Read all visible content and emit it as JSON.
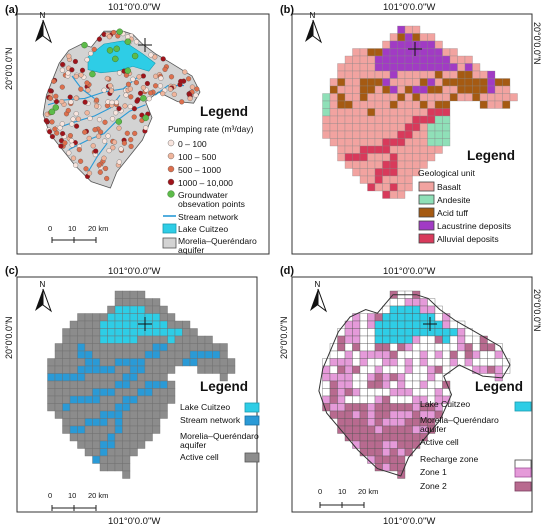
{
  "coordinates": {
    "lon_top": "101°0'0.0\"W",
    "lon_bottom": "101°0'0.0\"W",
    "lat_left": "20°0'0.0\"N",
    "lat_right": "20°0'0.0\"N"
  },
  "north_arrow_label": "N",
  "panels": {
    "a": {
      "label": "(a)",
      "legend_title": "Legend",
      "pumping_heading": "Pumping rate (m³/day)",
      "pumping_classes": [
        "0 – 100",
        "100 – 500",
        "500 – 1000",
        "1000 – 10,000"
      ],
      "gw_points": "Groundwater",
      "gw_points_2": "obsevation points",
      "stream": "Stream network",
      "lake": "Lake Cuitzeo",
      "aquifer": "Morelia–Queréndaro",
      "aquifer_2": "aquifer",
      "scale": [
        "0",
        "10",
        "20 km"
      ]
    },
    "b": {
      "label": "(b)",
      "legend_title": "Legend",
      "geo_heading": "Geological unit",
      "units": [
        "Basalt",
        "Andesite",
        "Acid tuff",
        "Lacustrine deposits",
        "Alluvial deposits"
      ]
    },
    "c": {
      "label": "(c)",
      "legend_title": "Legend",
      "lake": "Lake Cuitzeo",
      "stream": "Stream network",
      "aquifer": "Morelia–Queréndaro",
      "aquifer_2": "aquifer",
      "active": "Active cell",
      "scale": [
        "0",
        "10",
        "20 km"
      ]
    },
    "d": {
      "label": "(d)",
      "legend_title": "Legend",
      "lake": "Lake Cuitzeo",
      "aquifer": "Morelia–Queréndaro",
      "aquifer_2": "aquifer",
      "active": "Active cell",
      "recharge_heading": "Recharge zone",
      "zones": [
        "Zone 1",
        "Zone 2"
      ],
      "scale": [
        "0",
        "10",
        "20 km"
      ]
    }
  },
  "colors": {
    "aquifer": "#d3d3d3",
    "lake": "#2ecde6",
    "stream": "#2a9ad6",
    "basalt": "#f2a3a0",
    "andesite": "#8fe0b8",
    "acid_tuff": "#a55a12",
    "lacustrine": "#a13bc4",
    "alluvial": "#d83a5b",
    "active_cell": "#8c8c8c",
    "zone1": "#e59ad9",
    "zone2": "#b86a8f",
    "gw_point": "#5dbb4a",
    "pump_1": "#f8e5de",
    "pump_2": "#f0b59c",
    "pump_3": "#dd6f4d",
    "pump_4": "#a0131a"
  }
}
